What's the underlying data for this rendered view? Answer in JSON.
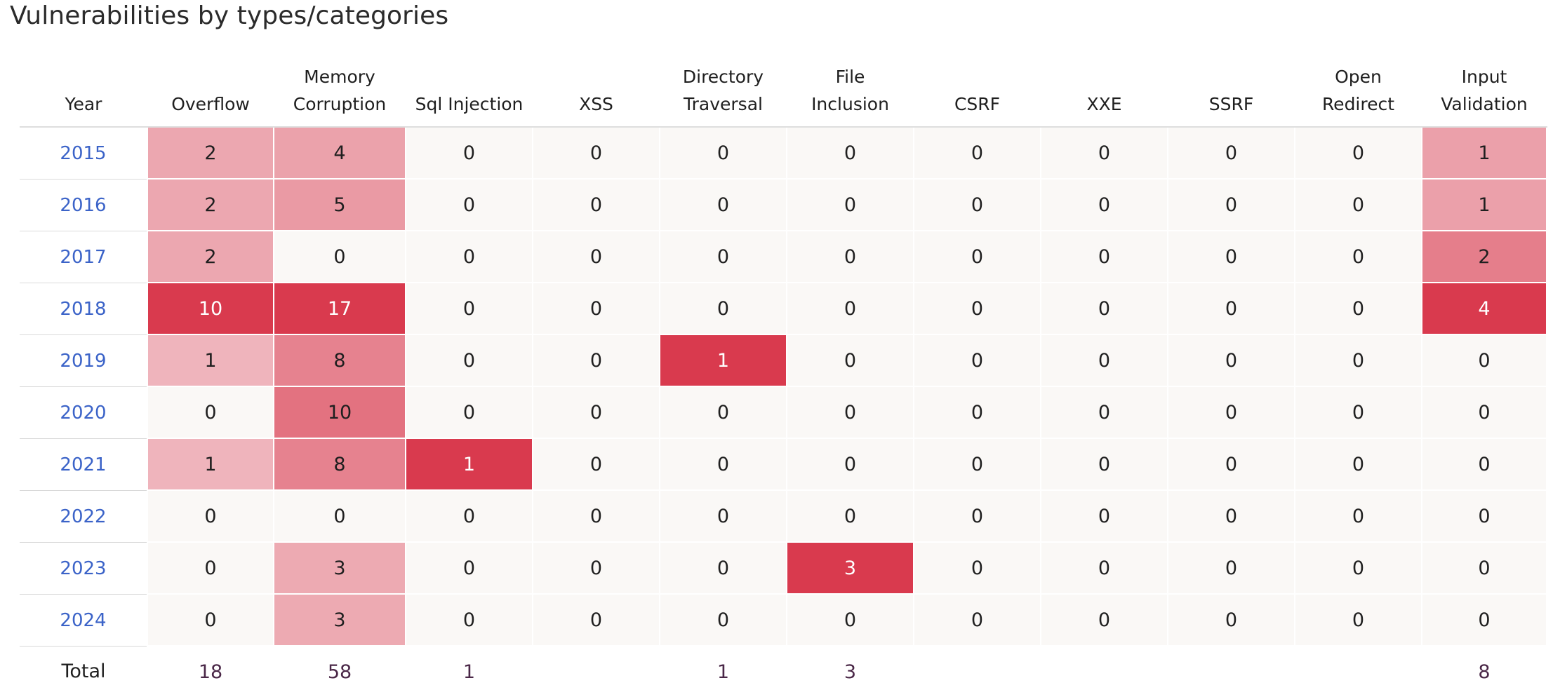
{
  "title": "Vulnerabilities by types/categories",
  "columns": [
    {
      "line1": "",
      "line2": "Year"
    },
    {
      "line1": "",
      "line2": "Overflow"
    },
    {
      "line1": "Memory",
      "line2": "Corruption"
    },
    {
      "line1": "",
      "line2": "Sql Injection"
    },
    {
      "line1": "",
      "line2": "XSS"
    },
    {
      "line1": "Directory",
      "line2": "Traversal"
    },
    {
      "line1": "File",
      "line2": "Inclusion"
    },
    {
      "line1": "",
      "line2": "CSRF"
    },
    {
      "line1": "",
      "line2": "XXE"
    },
    {
      "line1": "",
      "line2": "SSRF"
    },
    {
      "line1": "Open",
      "line2": "Redirect"
    },
    {
      "line1": "Input",
      "line2": "Validation"
    }
  ],
  "rows": [
    {
      "year": "2015",
      "values": [
        "2",
        "4",
        "0",
        "0",
        "0",
        "0",
        "0",
        "0",
        "0",
        "0",
        "1"
      ]
    },
    {
      "year": "2016",
      "values": [
        "2",
        "5",
        "0",
        "0",
        "0",
        "0",
        "0",
        "0",
        "0",
        "0",
        "1"
      ]
    },
    {
      "year": "2017",
      "values": [
        "2",
        "0",
        "0",
        "0",
        "0",
        "0",
        "0",
        "0",
        "0",
        "0",
        "2"
      ]
    },
    {
      "year": "2018",
      "values": [
        "10",
        "17",
        "0",
        "0",
        "0",
        "0",
        "0",
        "0",
        "0",
        "0",
        "4"
      ]
    },
    {
      "year": "2019",
      "values": [
        "1",
        "8",
        "0",
        "0",
        "1",
        "0",
        "0",
        "0",
        "0",
        "0",
        "0"
      ]
    },
    {
      "year": "2020",
      "values": [
        "0",
        "10",
        "0",
        "0",
        "0",
        "0",
        "0",
        "0",
        "0",
        "0",
        "0"
      ]
    },
    {
      "year": "2021",
      "values": [
        "1",
        "8",
        "1",
        "0",
        "0",
        "0",
        "0",
        "0",
        "0",
        "0",
        "0"
      ]
    },
    {
      "year": "2022",
      "values": [
        "0",
        "0",
        "0",
        "0",
        "0",
        "0",
        "0",
        "0",
        "0",
        "0",
        "0"
      ]
    },
    {
      "year": "2023",
      "values": [
        "0",
        "3",
        "0",
        "0",
        "0",
        "3",
        "0",
        "0",
        "0",
        "0",
        "0"
      ]
    },
    {
      "year": "2024",
      "values": [
        "0",
        "3",
        "0",
        "0",
        "0",
        "0",
        "0",
        "0",
        "0",
        "0",
        "0"
      ]
    }
  ],
  "total": {
    "label": "Total",
    "values": [
      "18",
      "58",
      "1",
      "",
      "1",
      "3",
      "",
      "",
      "",
      "",
      "8"
    ]
  },
  "colors": {
    "empty_cell": "#faf8f6",
    "heat_light": "#f1c2c8",
    "heat_dark": "#d93a4e",
    "link": "#3b63c8"
  }
}
